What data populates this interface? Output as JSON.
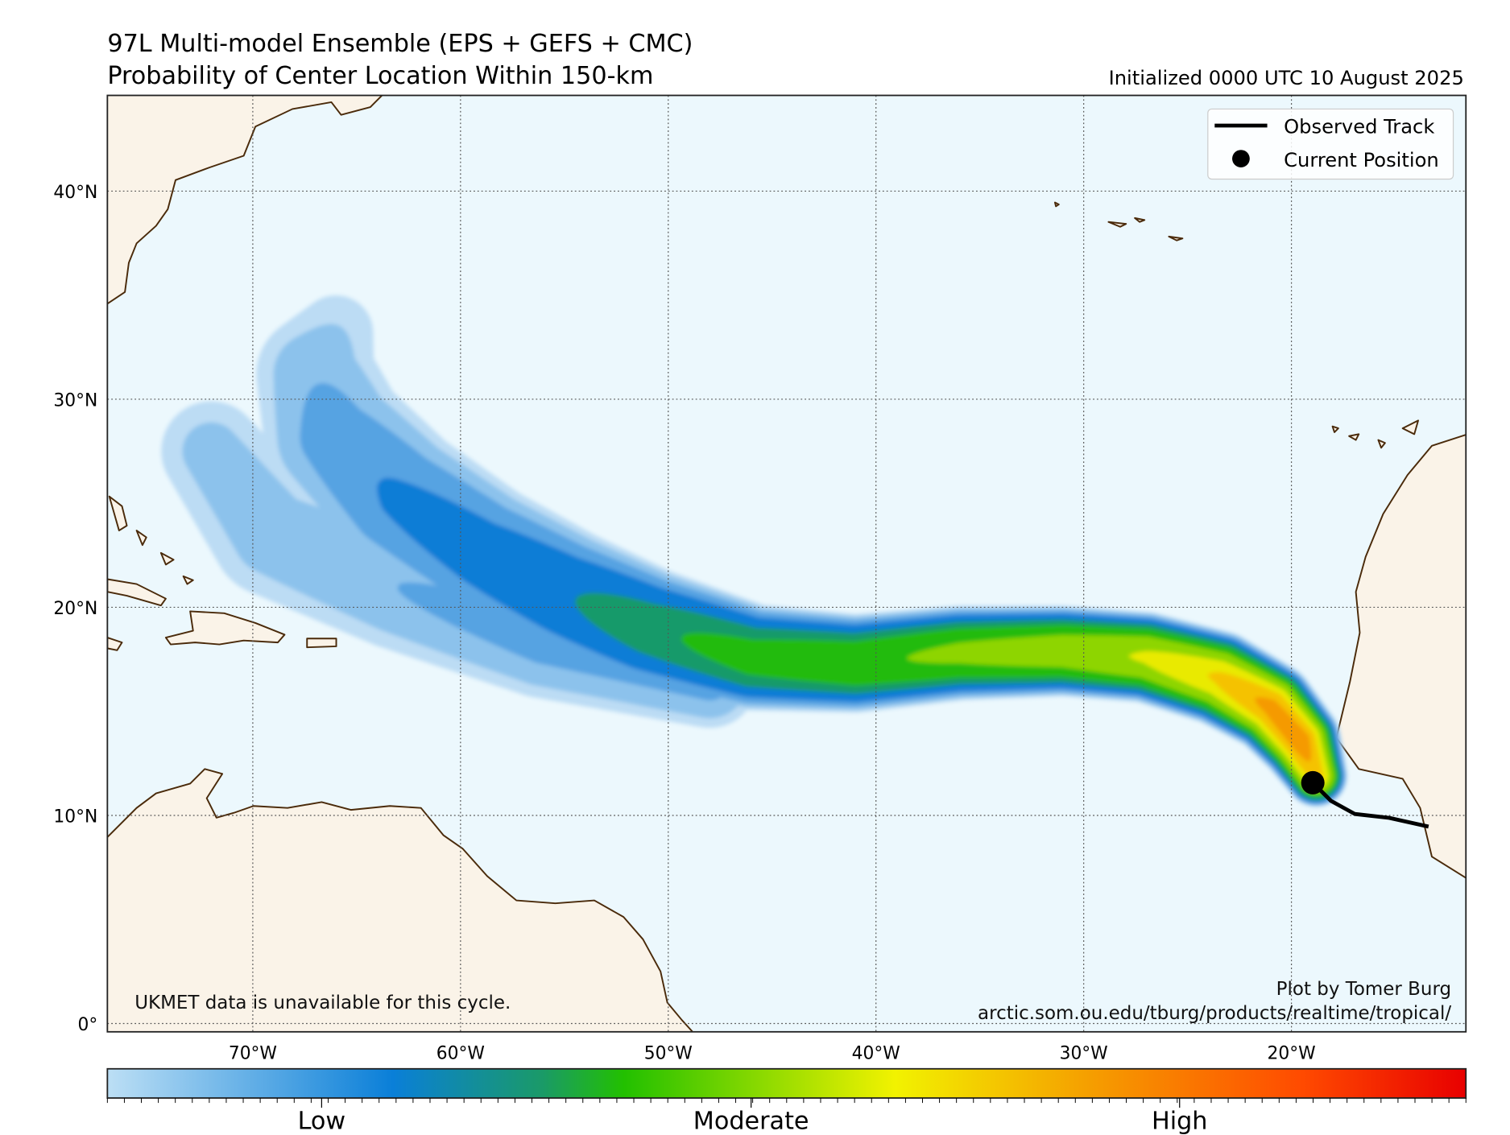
{
  "chart_data": {
    "type": "heatmap",
    "title": "97L Multi-model Ensemble (EPS + GEFS + CMC)",
    "subtitle": "Probability of Center Location Within 150-km",
    "init_label": "Initialized 0000 UTC 10 August 2025",
    "xlim": [
      -77,
      -11.6
    ],
    "ylim": [
      -0.4,
      44.6
    ],
    "grid": true,
    "xticks": [
      {
        "value": -70,
        "label": "70°W"
      },
      {
        "value": -60,
        "label": "60°W"
      },
      {
        "value": -50,
        "label": "50°W"
      },
      {
        "value": -40,
        "label": "40°W"
      },
      {
        "value": -30,
        "label": "30°W"
      },
      {
        "value": -20,
        "label": "20°W"
      }
    ],
    "yticks": [
      {
        "value": 0,
        "label": "0°"
      },
      {
        "value": 10,
        "label": "10°N"
      },
      {
        "value": 20,
        "label": "20°N"
      },
      {
        "value": 30,
        "label": "30°N"
      },
      {
        "value": 40,
        "label": "40°N"
      }
    ],
    "legend": {
      "placement": "top-right",
      "entries": [
        {
          "label": "Observed Track",
          "marker": "line"
        },
        {
          "label": "Current Position",
          "marker": "dot"
        }
      ]
    },
    "observed_track": [
      {
        "lon": -13.4,
        "lat": 9.46
      },
      {
        "lon": -15.3,
        "lat": 9.88
      },
      {
        "lon": -16.95,
        "lat": 10.07
      },
      {
        "lon": -18.1,
        "lat": 10.7
      },
      {
        "lon": -18.97,
        "lat": 11.57
      }
    ],
    "current_position": {
      "lon": -18.97,
      "lat": 11.57
    },
    "probability_levels": [
      {
        "threshold": 0.01,
        "color": "#bcdcf4"
      },
      {
        "threshold": 0.05,
        "color": "#8cc2ec"
      },
      {
        "threshold": 0.1,
        "color": "#57a3e2"
      },
      {
        "threshold": 0.16,
        "color": "#0f7dd6"
      },
      {
        "threshold": 0.25,
        "color": "#169a6a"
      },
      {
        "threshold": 0.32,
        "color": "#24bb08"
      },
      {
        "threshold": 0.42,
        "color": "#8ed500"
      },
      {
        "threshold": 0.52,
        "color": "#e9ea00"
      },
      {
        "threshold": 0.59,
        "color": "#f5c200"
      },
      {
        "threshold": 0.65,
        "color": "#f59a00"
      }
    ],
    "plume_centerline": [
      {
        "lon": -18.8,
        "lat": 11.9,
        "p": 0.62,
        "spread": 1.5
      },
      {
        "lon": -19.6,
        "lat": 13.6,
        "p": 0.69,
        "spread": 2.0
      },
      {
        "lon": -21.0,
        "lat": 15.2,
        "p": 0.67,
        "spread": 2.2
      },
      {
        "lon": -23.5,
        "lat": 16.6,
        "p": 0.6,
        "spread": 2.3
      },
      {
        "lon": -27.0,
        "lat": 17.6,
        "p": 0.53,
        "spread": 2.2
      },
      {
        "lon": -31.0,
        "lat": 17.9,
        "p": 0.48,
        "spread": 2.2
      },
      {
        "lon": -36.0,
        "lat": 17.8,
        "p": 0.44,
        "spread": 2.3
      },
      {
        "lon": -41.0,
        "lat": 17.3,
        "p": 0.4,
        "spread": 2.4
      },
      {
        "lon": -46.0,
        "lat": 17.6,
        "p": 0.36,
        "spread": 2.6
      },
      {
        "lon": -51.0,
        "lat": 19.0,
        "p": 0.3,
        "spread": 3.0
      },
      {
        "lon": -55.0,
        "lat": 20.6,
        "p": 0.24,
        "spread": 3.3
      },
      {
        "lon": -59.0,
        "lat": 22.6,
        "p": 0.2,
        "spread": 3.5
      },
      {
        "lon": -63.0,
        "lat": 25.2,
        "p": 0.17,
        "spread": 3.7
      },
      {
        "lon": -66.0,
        "lat": 28.2,
        "p": 0.13,
        "spread": 3.6
      },
      {
        "lon": -67.0,
        "lat": 31.2,
        "p": 0.09,
        "spread": 3.0
      },
      {
        "lon": -66.0,
        "lat": 33.2,
        "p": 0.05,
        "spread": 2.0
      }
    ],
    "plume_secondary": [
      {
        "lon": -48.0,
        "lat": 16.5,
        "p": 0.12,
        "spread": 2.4
      },
      {
        "lon": -56.0,
        "lat": 18.5,
        "p": 0.12,
        "spread": 3.0
      },
      {
        "lon": -63.0,
        "lat": 21.0,
        "p": 0.1,
        "spread": 3.2
      },
      {
        "lon": -69.0,
        "lat": 23.5,
        "p": 0.08,
        "spread": 3.2
      },
      {
        "lon": -72.0,
        "lat": 27.5,
        "p": 0.07,
        "spread": 2.6
      }
    ],
    "colorbar": {
      "labels": [
        "Low",
        "Moderate",
        "High"
      ],
      "colors": [
        "#bcdff5",
        "#0a7fd8",
        "#1a9a68",
        "#22c000",
        "#f2f200",
        "#f5a000",
        "#ff4a00",
        "#e80000"
      ]
    },
    "annotations": {
      "ukmet": "UKMET data is unavailable for this cycle.",
      "credit": "Plot by Tomer Burg",
      "url": "arctic.som.ou.edu/tburg/products/realtime/tropical/"
    }
  }
}
